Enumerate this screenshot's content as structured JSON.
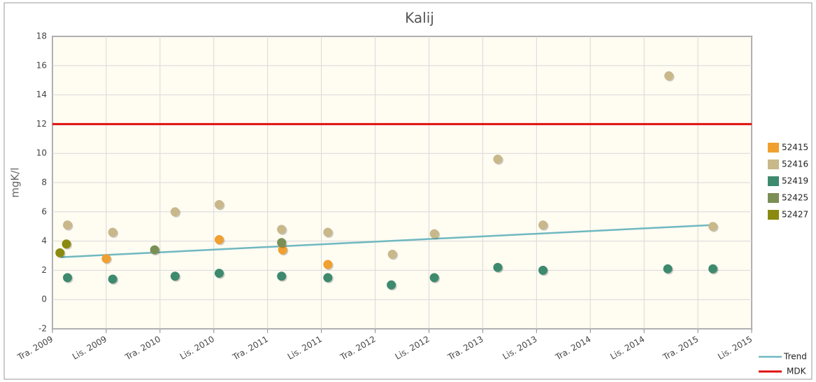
{
  "chart_data": {
    "type": "scatter",
    "title": "Kalij",
    "y_label": "mgK/l",
    "xlim": [
      2009.25,
      2015.75
    ],
    "xticks": [
      {
        "value": 2009.25,
        "label": "Tra. 2009"
      },
      {
        "value": 2009.75,
        "label": "Lis. 2009"
      },
      {
        "value": 2010.25,
        "label": "Tra. 2010"
      },
      {
        "value": 2010.75,
        "label": "Lis. 2010"
      },
      {
        "value": 2011.25,
        "label": "Tra. 2011"
      },
      {
        "value": 2011.75,
        "label": "Lis. 2011"
      },
      {
        "value": 2012.25,
        "label": "Tra. 2012"
      },
      {
        "value": 2012.75,
        "label": "Lis. 2012"
      },
      {
        "value": 2013.25,
        "label": "Tra. 2013"
      },
      {
        "value": 2013.75,
        "label": "Lis. 2013"
      },
      {
        "value": 2014.25,
        "label": "Tra. 2014"
      },
      {
        "value": 2014.75,
        "label": "Lis. 2014"
      },
      {
        "value": 2015.25,
        "label": "Tra. 2015"
      },
      {
        "value": 2015.75,
        "label": "Lis. 2015"
      }
    ],
    "ylim": [
      -2,
      18
    ],
    "yticks": [
      -2,
      0,
      2,
      4,
      6,
      8,
      10,
      12,
      14,
      16,
      18
    ],
    "grid": true,
    "legend": "right",
    "series": [
      {
        "name": "52415",
        "color": "#f0a030",
        "x": [
          2009.75,
          2010.8,
          2011.39,
          2011.81
        ],
        "values": [
          2.8,
          4.1,
          3.4,
          2.4
        ]
      },
      {
        "name": "52416",
        "color": "#c8b88a",
        "x": [
          2009.39,
          2009.81,
          2010.39,
          2010.8,
          2011.38,
          2011.81,
          2012.41,
          2012.8,
          2013.39,
          2013.81,
          2014.98,
          2015.39
        ],
        "values": [
          5.1,
          4.6,
          6.0,
          6.5,
          4.8,
          4.6,
          3.1,
          4.5,
          9.6,
          5.1,
          15.3,
          5.0
        ]
      },
      {
        "name": "52419",
        "color": "#3d8a6e",
        "x": [
          2009.39,
          2009.81,
          2010.39,
          2010.8,
          2011.38,
          2011.81,
          2012.4,
          2012.8,
          2013.39,
          2013.81,
          2014.97,
          2015.39
        ],
        "values": [
          1.5,
          1.4,
          1.6,
          1.8,
          1.6,
          1.5,
          1.0,
          1.5,
          2.2,
          2.0,
          2.1,
          2.1
        ]
      },
      {
        "name": "52425",
        "color": "#7a8f55",
        "x": [
          2010.2,
          2011.38
        ],
        "values": [
          3.4,
          3.9
        ]
      },
      {
        "name": "52427",
        "color": "#8a8a10",
        "x": [
          2009.32,
          2009.38
        ],
        "values": [
          3.2,
          3.8
        ]
      }
    ],
    "trend": {
      "name": "Trend",
      "color": "#6fb8c0",
      "x": [
        2009.33,
        2015.39
      ],
      "values": [
        2.9,
        5.1
      ]
    },
    "threshold": {
      "name": "MDK",
      "color": "#e01010",
      "value": 12
    }
  }
}
